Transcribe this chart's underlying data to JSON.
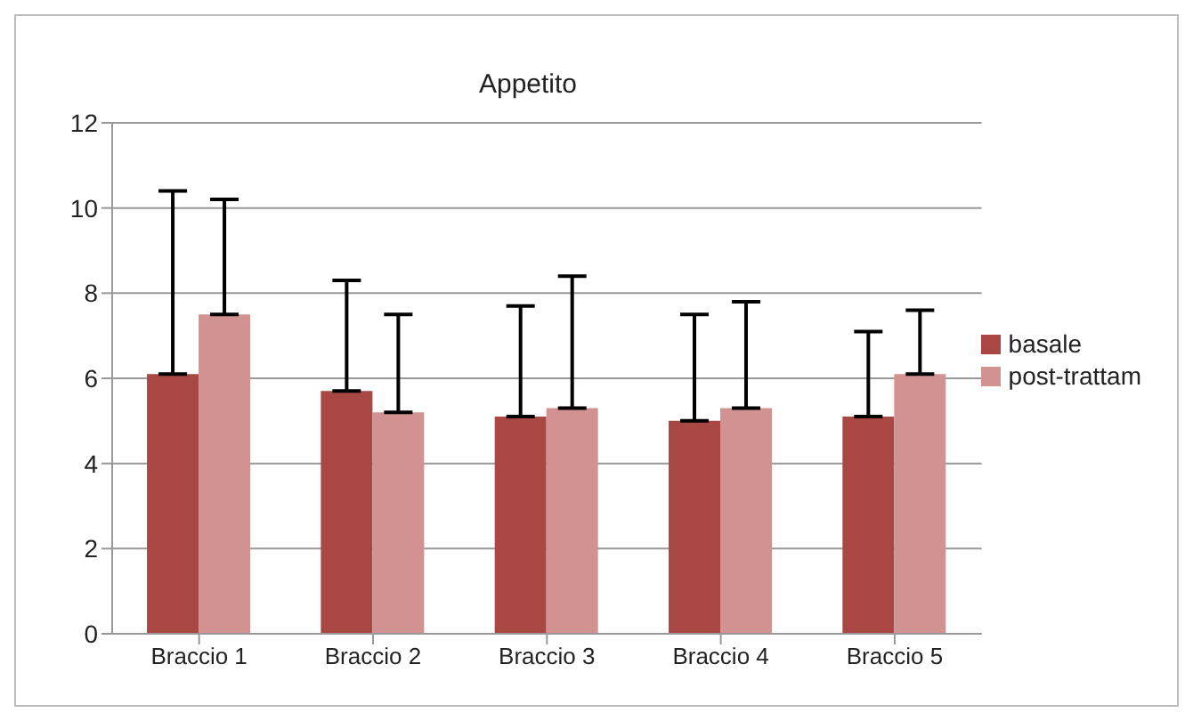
{
  "chart_data": {
    "type": "bar",
    "title": "Appetito",
    "categories": [
      "Braccio 1",
      "Braccio 2",
      "Braccio 3",
      "Braccio 4",
      "Braccio 5"
    ],
    "series": [
      {
        "name": "basale",
        "color": "#a94744",
        "values": [
          6.1,
          5.7,
          5.1,
          5.0,
          5.1
        ],
        "errors": [
          [
            6.1,
            10.4
          ],
          [
            5.7,
            8.3
          ],
          [
            5.1,
            7.7
          ],
          [
            5.0,
            7.5
          ],
          [
            5.1,
            7.1
          ]
        ]
      },
      {
        "name": "post-trattam",
        "color": "#d19291",
        "values": [
          7.5,
          5.2,
          5.3,
          5.3,
          6.1
        ],
        "errors": [
          [
            7.5,
            10.2
          ],
          [
            5.2,
            7.5
          ],
          [
            5.3,
            8.4
          ],
          [
            5.3,
            7.8
          ],
          [
            6.1,
            7.6
          ]
        ]
      }
    ],
    "ylim": [
      0,
      12
    ],
    "yticks": [
      0,
      2,
      4,
      6,
      8,
      10,
      12
    ],
    "grid": "y",
    "legend": "right"
  }
}
